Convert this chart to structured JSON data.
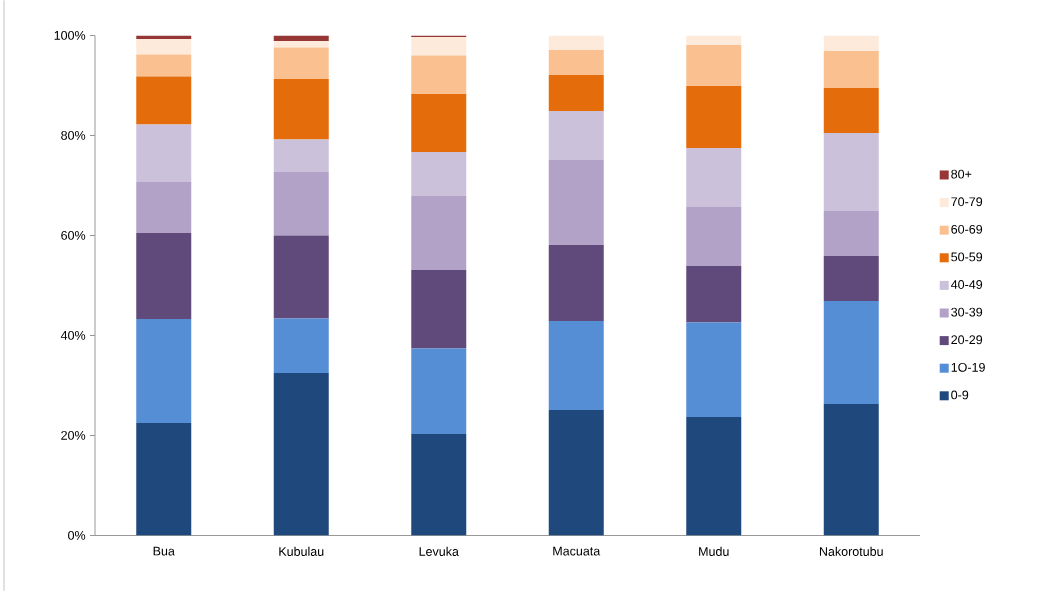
{
  "chart_data": {
    "type": "bar",
    "stacked": true,
    "categories": [
      "Bua",
      "Kubulau",
      "Levuka",
      "Macuata",
      "Mudu",
      "Nakorotubu"
    ],
    "series": [
      {
        "name": "0-9",
        "color": "#1f497d",
        "values": [
          22.5,
          32.5,
          20.3,
          25.1,
          23.7,
          26.3
        ]
      },
      {
        "name": "1O-19",
        "color": "#558ed5",
        "values": [
          20.8,
          10.9,
          17.1,
          17.8,
          18.9,
          20.6
        ]
      },
      {
        "name": "20-29",
        "color": "#604a7b",
        "values": [
          17.2,
          16.6,
          15.7,
          15.2,
          11.3,
          9.0
        ]
      },
      {
        "name": "30-39",
        "color": "#b3a2c7",
        "values": [
          10.2,
          12.7,
          14.8,
          17.0,
          11.8,
          9.0
        ]
      },
      {
        "name": "40-49",
        "color": "#ccc1da",
        "values": [
          11.5,
          6.5,
          8.8,
          9.8,
          11.8,
          15.6
        ]
      },
      {
        "name": "50-59",
        "color": "#e46c0a",
        "values": [
          9.6,
          12.1,
          11.6,
          7.2,
          12.4,
          9.0
        ]
      },
      {
        "name": "60-69",
        "color": "#fac090",
        "values": [
          4.4,
          6.3,
          7.7,
          5.0,
          8.2,
          7.4
        ]
      },
      {
        "name": "70-79",
        "color": "#fdeada",
        "values": [
          3.1,
          1.3,
          3.7,
          2.9,
          1.9,
          3.1
        ]
      },
      {
        "name": "80+",
        "color": "#953735",
        "values": [
          0.7,
          1.1,
          0.3,
          0,
          0,
          0
        ]
      }
    ],
    "ylim": [
      0,
      100
    ],
    "yticks": [
      {
        "value": 0,
        "label": "0%"
      },
      {
        "value": 20,
        "label": "20%"
      },
      {
        "value": 40,
        "label": "40%"
      },
      {
        "value": 60,
        "label": "60%"
      },
      {
        "value": 80,
        "label": "80%"
      },
      {
        "value": 100,
        "label": "100%"
      }
    ],
    "grid": false,
    "legend": "right"
  }
}
